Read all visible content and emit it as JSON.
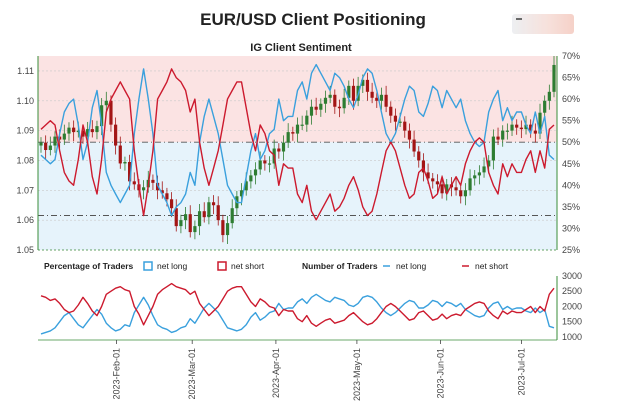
{
  "title": "EUR/USD Client Positioning",
  "colors": {
    "long": "#3aa0dd",
    "short": "#cc1a2e",
    "candle_up": "#2e7d32",
    "candle_down": "#a31515",
    "bg_short": "#fbe3e3",
    "bg_long": "#e6f3fb"
  },
  "chart_data": [
    {
      "type": "candlestick",
      "subtitle": "IG Client Sentiment",
      "y_left_ticks": [
        "1.05",
        "1.06",
        "1.07",
        "1.08",
        "1.09",
        "1.10",
        "1.11"
      ],
      "y_right_ticks": [
        "25%",
        "30%",
        "35%",
        "40%",
        "45%",
        "50%",
        "55%",
        "60%",
        "65%",
        "70%"
      ],
      "ylim_price": [
        1.05,
        1.115
      ],
      "ylim_percent": [
        25,
        70
      ],
      "grid": true,
      "reference_lines": [
        {
          "axis": "percent",
          "value": 50
        },
        {
          "axis": "percent",
          "value": 33
        }
      ],
      "closes": [
        1.086,
        1.0835,
        1.085,
        1.088,
        1.087,
        1.089,
        1.091,
        1.0895,
        1.09,
        1.088,
        1.0905,
        1.0895,
        1.0915,
        1.0985,
        1.1,
        1.092,
        1.085,
        1.079,
        1.0795,
        1.073,
        1.072,
        1.07,
        1.071,
        1.0735,
        1.0725,
        1.07,
        1.069,
        1.067,
        1.064,
        1.058,
        1.06,
        1.062,
        1.056,
        1.058,
        1.063,
        1.061,
        1.066,
        1.065,
        1.06,
        1.055,
        1.059,
        1.064,
        1.068,
        1.07,
        1.073,
        1.075,
        1.077,
        1.08,
        1.079,
        1.079,
        1.084,
        1.083,
        1.086,
        1.0895,
        1.089,
        1.092,
        1.092,
        1.095,
        1.098,
        1.097,
        1.099,
        1.101,
        1.102,
        1.098,
        1.0975,
        1.101,
        1.105,
        1.1,
        1.105,
        1.107,
        1.103,
        1.101,
        1.1,
        1.102,
        1.098,
        1.095,
        1.093,
        1.093,
        1.09,
        1.087,
        1.083,
        1.08,
        1.076,
        1.074,
        1.073,
        1.072,
        1.069,
        1.072,
        1.071,
        1.07,
        1.068,
        1.07,
        1.074,
        1.075,
        1.076,
        1.078,
        1.08,
        1.088,
        1.087,
        1.09,
        1.09,
        1.092,
        1.091,
        1.0905,
        1.092,
        1.09,
        1.089,
        1.096,
        1.1,
        1.103,
        1.112
      ],
      "net_long_pct": [
        47,
        46,
        45,
        46,
        52,
        57,
        59,
        60,
        54,
        46,
        50,
        58,
        62,
        54,
        43,
        40,
        38,
        36,
        38,
        40,
        52,
        60,
        67,
        60,
        52,
        40,
        38,
        36,
        33,
        35,
        36,
        38,
        43,
        40,
        50,
        56,
        60,
        56,
        52,
        46,
        40,
        38,
        36,
        36,
        42,
        48,
        52,
        46,
        48,
        52,
        53,
        60,
        55,
        56,
        56,
        62,
        64,
        60,
        66,
        68,
        66,
        64,
        62,
        66,
        65,
        63,
        60,
        58,
        61,
        65,
        67,
        66,
        62,
        57,
        52,
        50,
        52,
        56,
        60,
        63,
        62,
        57,
        56,
        59,
        63,
        62,
        58,
        62,
        60,
        58,
        60,
        55,
        52,
        50,
        49,
        50,
        57,
        60,
        62,
        55,
        58,
        55,
        57,
        57,
        54,
        52,
        57,
        52,
        56,
        47,
        46
      ],
      "net_short_pct": [
        53,
        54,
        55,
        54,
        48,
        43,
        41,
        40,
        46,
        54,
        50,
        42,
        38,
        46,
        57,
        60,
        62,
        64,
        62,
        60,
        48,
        40,
        33,
        40,
        48,
        60,
        62,
        64,
        67,
        65,
        64,
        62,
        57,
        60,
        50,
        44,
        40,
        44,
        48,
        54,
        60,
        62,
        64,
        64,
        58,
        52,
        48,
        54,
        52,
        48,
        47,
        40,
        45,
        44,
        44,
        38,
        36,
        40,
        34,
        32,
        34,
        36,
        38,
        34,
        35,
        37,
        40,
        42,
        39,
        35,
        33,
        34,
        38,
        43,
        48,
        50,
        48,
        44,
        40,
        37,
        38,
        43,
        44,
        41,
        37,
        38,
        42,
        38,
        40,
        42,
        40,
        45,
        48,
        50,
        51,
        50,
        43,
        40,
        38,
        45,
        42,
        45,
        43,
        43,
        46,
        48,
        43,
        48,
        44,
        53,
        54
      ],
      "x_date_ticks": [
        "2023-Feb-01",
        "2023-Mar-01",
        "2023-Apr-01",
        "2023-May-01",
        "2023-Jun-01",
        "2023-Jul-01"
      ]
    },
    {
      "type": "line",
      "legend": [
        {
          "group": "Percentage of Traders",
          "label": "net long",
          "marker": "box"
        },
        {
          "group": "Percentage of Traders",
          "label": "net short",
          "marker": "box"
        },
        {
          "group": "Number of Traders",
          "label": "net long",
          "marker": "line"
        },
        {
          "group": "Number of Traders",
          "label": "net short",
          "marker": "line"
        }
      ],
      "legend_titles": [
        "Percentage of Traders",
        "Number of Traders"
      ],
      "y_right_ticks": [
        "1000",
        "1500",
        "2000",
        "2500",
        "3000"
      ],
      "ylim": [
        900,
        3000
      ],
      "series": [
        {
          "name": "net long",
          "values": [
            1100,
            1150,
            1200,
            1300,
            1500,
            1700,
            1800,
            1600,
            1400,
            1300,
            1500,
            1700,
            1900,
            1750,
            1450,
            1300,
            1200,
            1250,
            1400,
            1350,
            1800,
            2050,
            2300,
            2050,
            1700,
            1400,
            1300,
            1250,
            1150,
            1200,
            1300,
            1350,
            1600,
            1450,
            1700,
            1950,
            2100,
            1950,
            1800,
            1550,
            1300,
            1250,
            1200,
            1250,
            1400,
            1650,
            1800,
            1550,
            1650,
            1800,
            1850,
            2100,
            1900,
            1950,
            1950,
            2150,
            2250,
            2100,
            2300,
            2400,
            2300,
            2200,
            2150,
            2300,
            2250,
            2200,
            2050,
            2000,
            2100,
            2300,
            2350,
            2300,
            2150,
            1950,
            1800,
            1700,
            1800,
            1950,
            2100,
            2200,
            2150,
            1950,
            1950,
            2050,
            2200,
            2150,
            2000,
            2150,
            2100,
            2000,
            2100,
            1900,
            1800,
            1700,
            1650,
            1700,
            1950,
            2100,
            2150,
            1900,
            2000,
            1900,
            1950,
            1950,
            1850,
            1800,
            1950,
            1800,
            1900,
            1350,
            1300
          ]
        },
        {
          "name": "net short",
          "values": [
            2350,
            2300,
            2200,
            2250,
            2100,
            1900,
            1800,
            1850,
            2050,
            2300,
            2100,
            1850,
            1700,
            2000,
            2400,
            2500,
            2600,
            2650,
            2550,
            2500,
            2000,
            1750,
            1400,
            1700,
            2000,
            2400,
            2550,
            2650,
            2750,
            2650,
            2600,
            2550,
            2400,
            2500,
            2100,
            1900,
            1700,
            1850,
            2000,
            2250,
            2500,
            2600,
            2650,
            2650,
            2400,
            2150,
            2000,
            2250,
            2150,
            2000,
            1950,
            1700,
            1900,
            1850,
            1850,
            1600,
            1500,
            1700,
            1450,
            1350,
            1450,
            1550,
            1600,
            1450,
            1500,
            1550,
            1700,
            1800,
            1650,
            1500,
            1400,
            1450,
            1600,
            1800,
            2000,
            2100,
            2000,
            1850,
            1700,
            1550,
            1600,
            1800,
            1850,
            1700,
            1550,
            1600,
            1750,
            1600,
            1700,
            1750,
            1700,
            1900,
            2000,
            2100,
            2150,
            2100,
            1850,
            1700,
            1600,
            1850,
            1750,
            1850,
            1800,
            1800,
            1900,
            2000,
            1800,
            2000,
            1850,
            2400,
            2600
          ]
        }
      ]
    }
  ]
}
